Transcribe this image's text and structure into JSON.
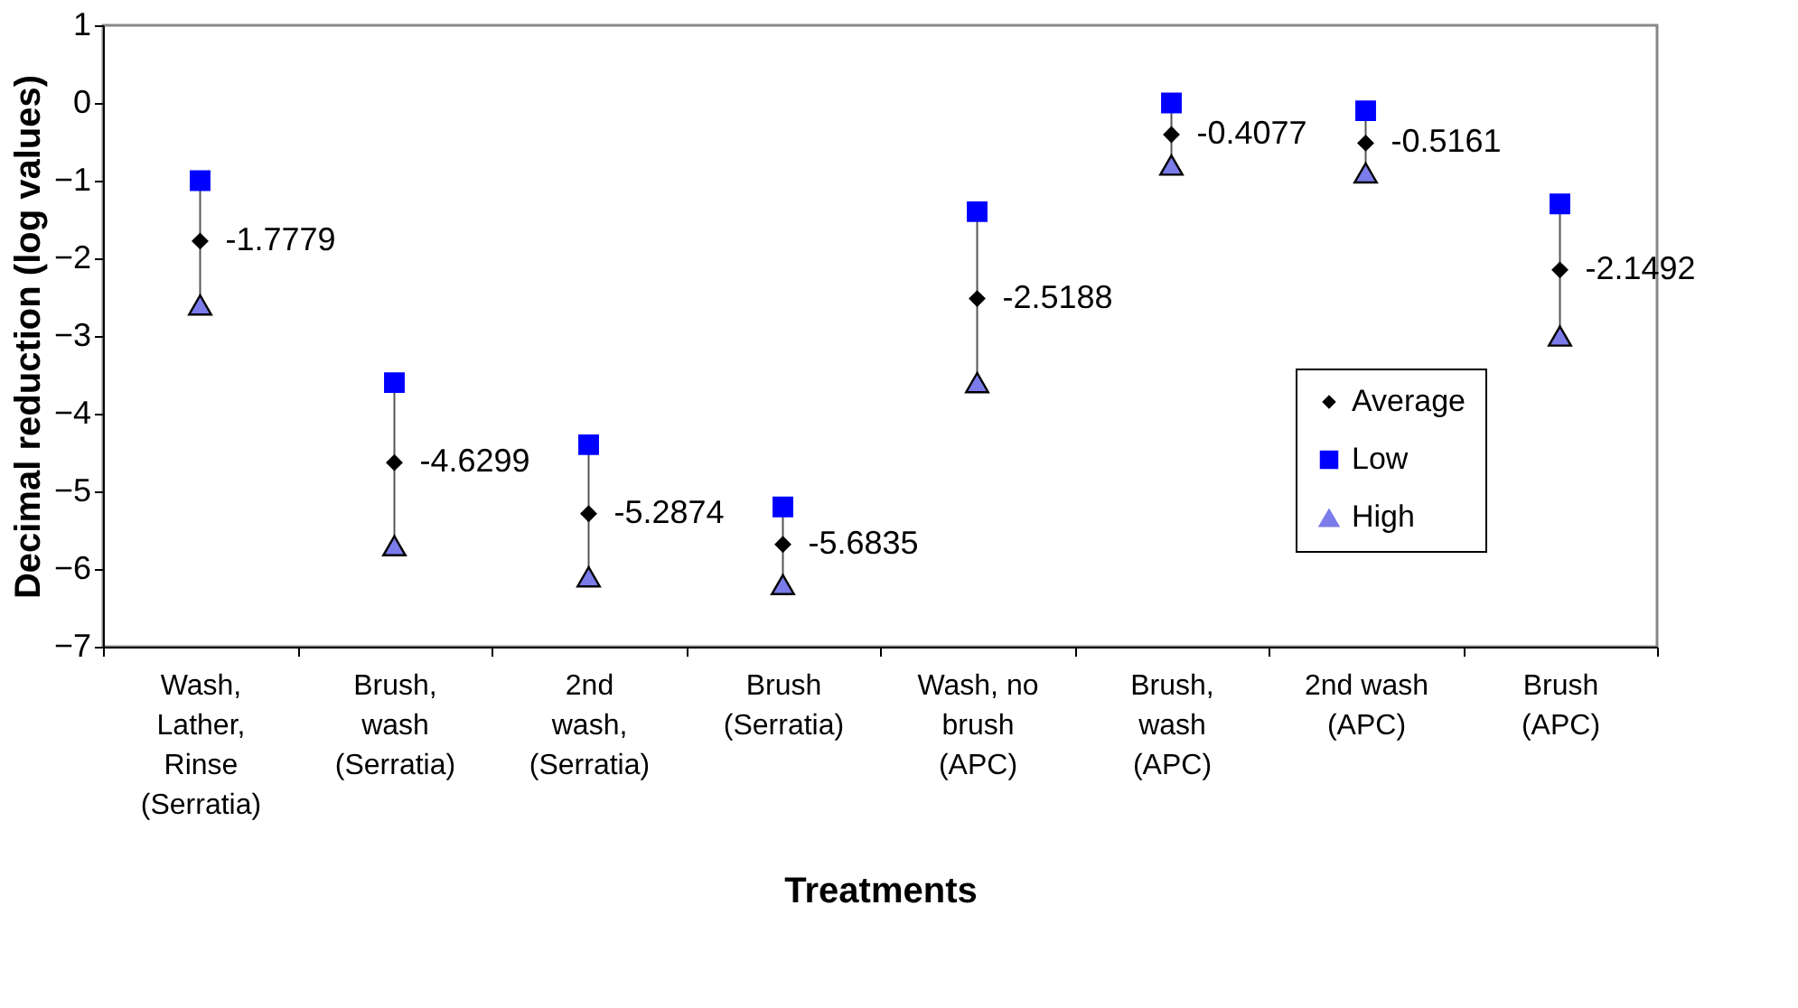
{
  "chart_data": {
    "type": "scatter",
    "xlabel": "Treatments",
    "ylabel": "Decimal reduction (log values)",
    "categories": [
      "Wash, Lather, Rinse (Serratia)",
      "Brush, wash (Serratia)",
      "2nd wash, (Serratia)",
      "Brush (Serratia)",
      "Wash, no brush (APC)",
      "Brush, wash (APC)",
      "2nd wash (APC)",
      "Brush (APC)"
    ],
    "series": [
      {
        "name": "Average",
        "color": "#000000",
        "marker": "diamond",
        "data_labels": true,
        "values": [
          -1.7779,
          -4.6299,
          -5.2874,
          -5.6835,
          -2.5188,
          -0.4077,
          -0.5161,
          -2.1492
        ]
      },
      {
        "name": "Low",
        "color": "#0000ff",
        "marker": "square",
        "values": [
          -1.0,
          -3.6,
          -4.4,
          -5.2,
          -1.4,
          0.0,
          -0.1,
          -1.3
        ]
      },
      {
        "name": "High",
        "color": "#7b7bea",
        "marker": "triangle",
        "values": [
          -2.6,
          -5.7,
          -6.1,
          -6.2,
          -3.6,
          -0.8,
          -0.9,
          -3.0
        ]
      }
    ],
    "ylim": [
      -7,
      1
    ],
    "yticks": [
      -7,
      -6,
      -5,
      -4,
      -3,
      -2,
      -1,
      0,
      1
    ],
    "grid": false,
    "legend": "right"
  }
}
